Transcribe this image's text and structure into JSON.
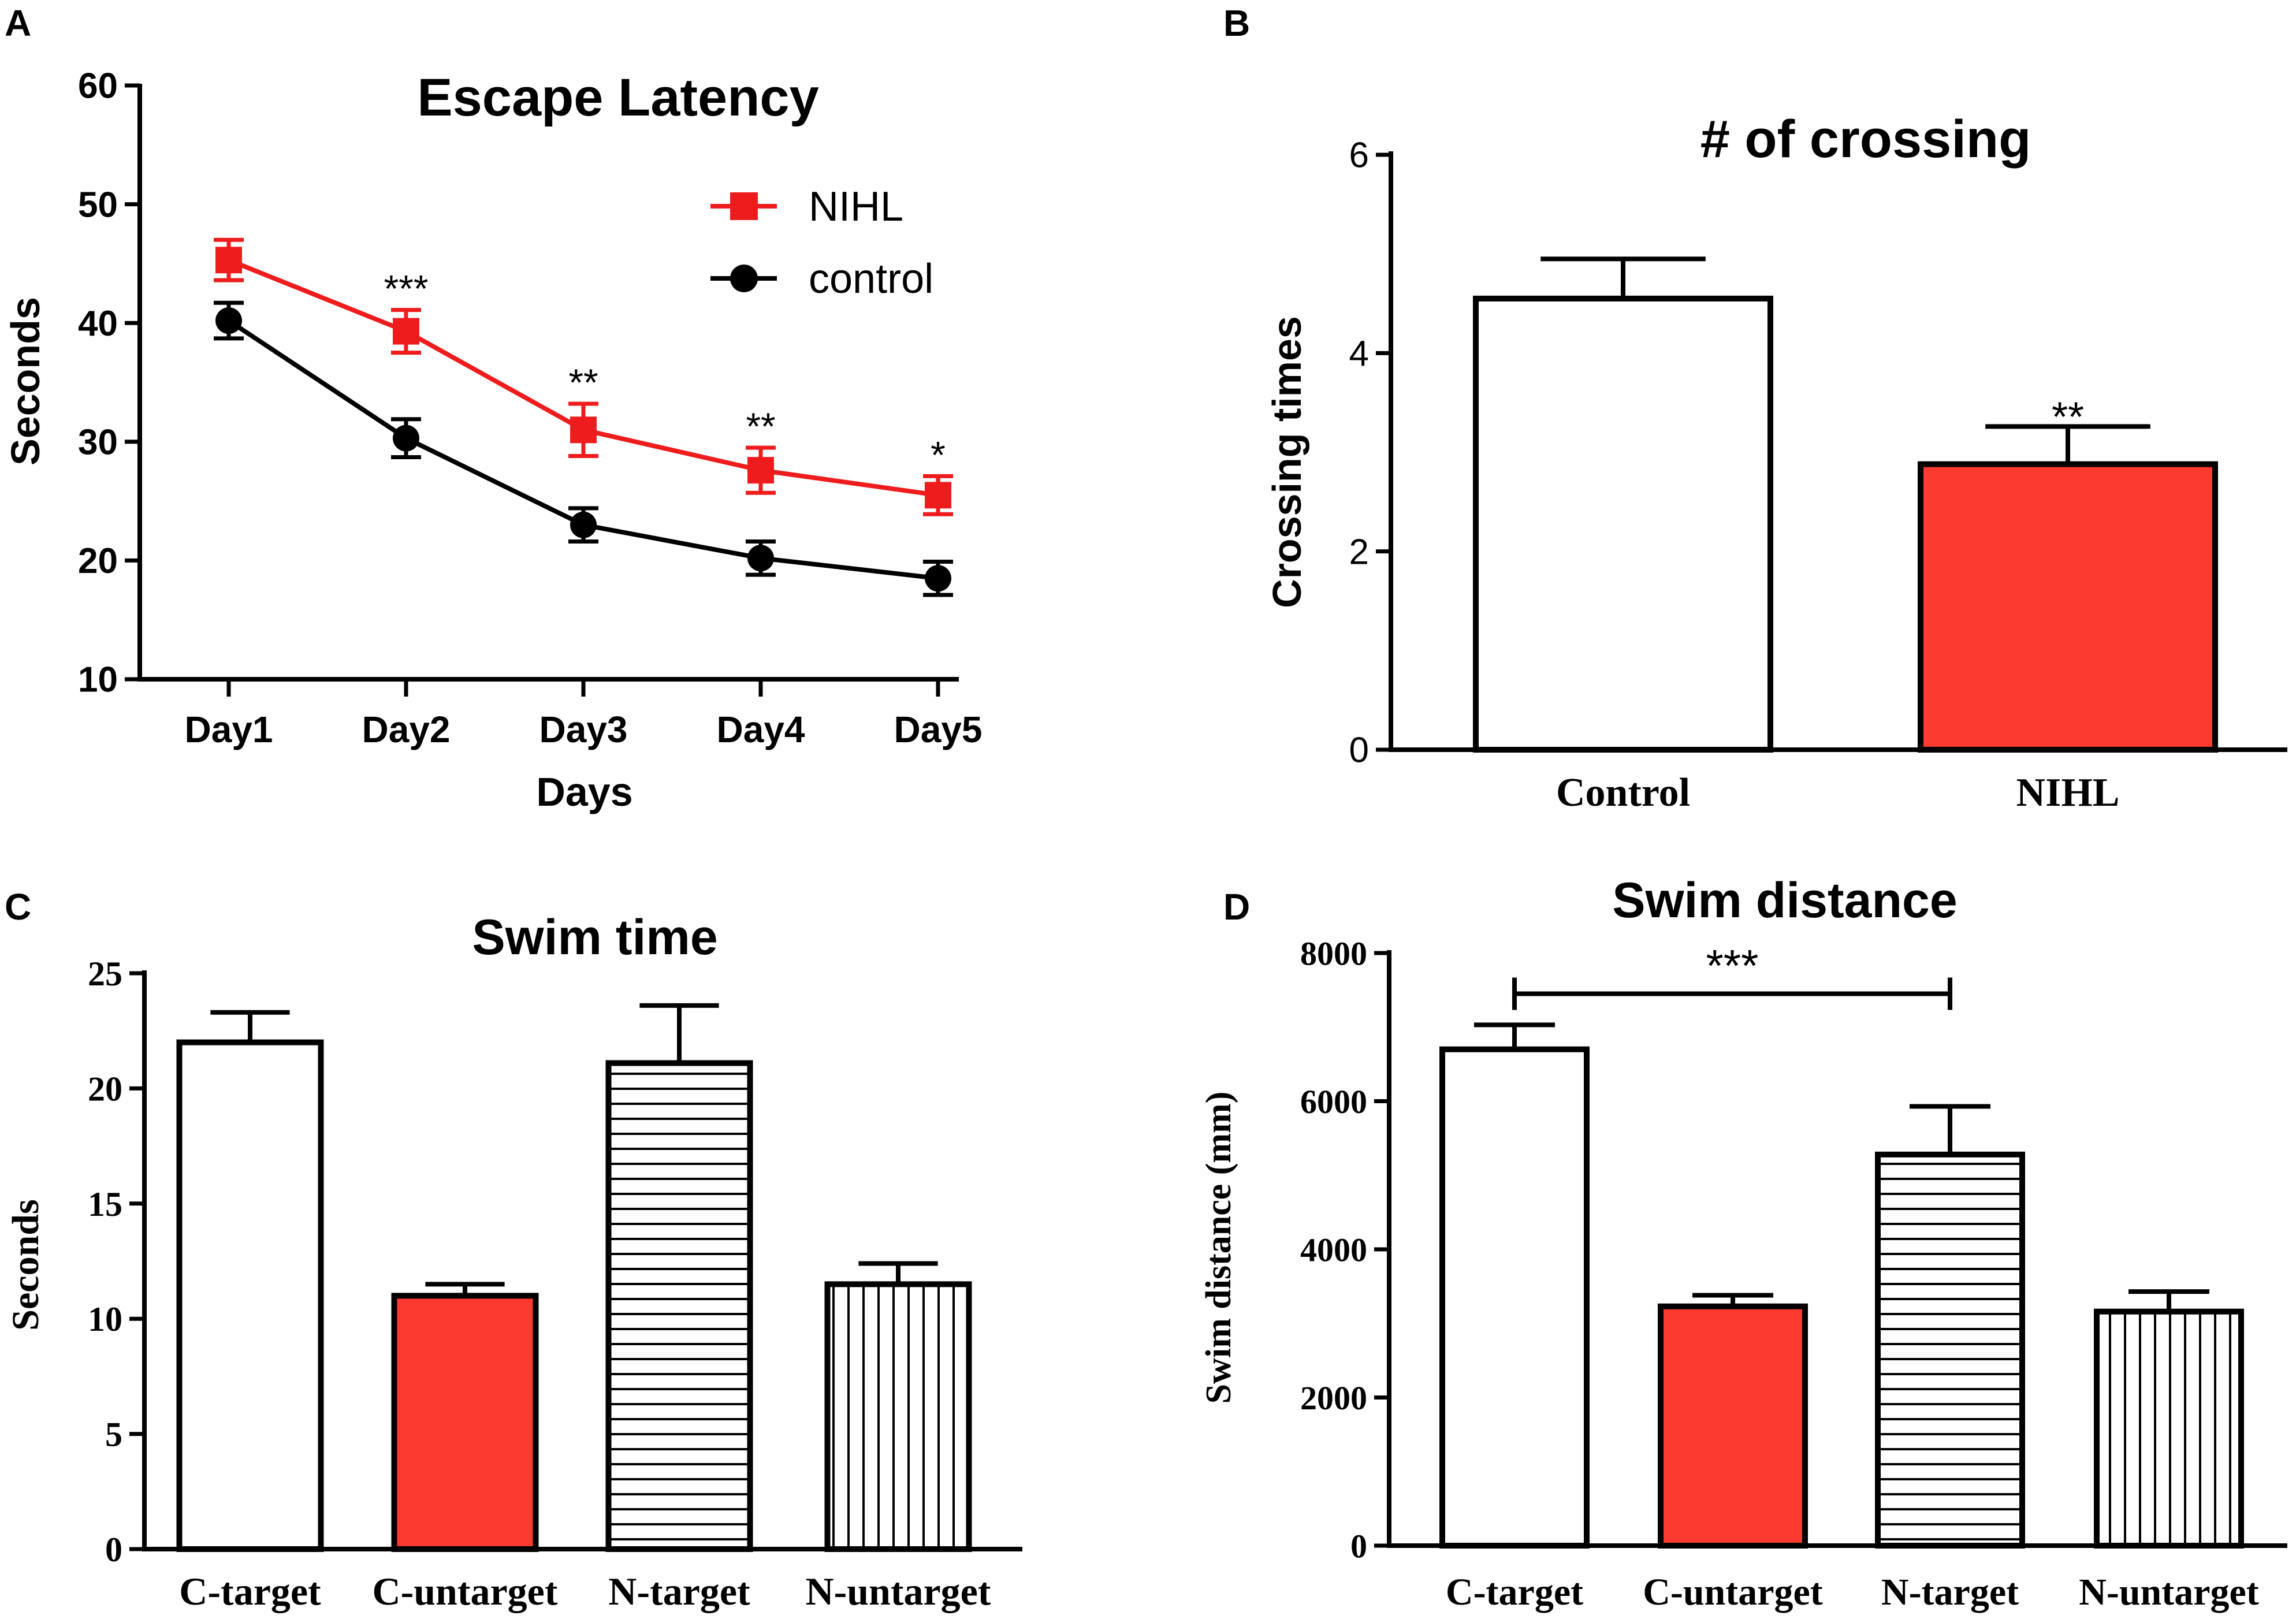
{
  "chart_data": [
    {
      "panel": "A",
      "type": "line",
      "title": "Escape Latency",
      "xlabel": "Days",
      "ylabel": "Seconds",
      "categories": [
        "Day1",
        "Day2",
        "Day3",
        "Day4",
        "Day5"
      ],
      "ylim": [
        10,
        60
      ],
      "yticks": [
        "10",
        "20",
        "30",
        "40",
        "50",
        "60"
      ],
      "series": [
        {
          "name": "NIHL",
          "color": "#ee1c1c",
          "marker": "square",
          "values": [
            45.3,
            39.3,
            31.0,
            27.6,
            25.5
          ],
          "errors": [
            1.7,
            1.8,
            2.2,
            1.9,
            1.6
          ]
        },
        {
          "name": "control",
          "color": "#000000",
          "marker": "circle",
          "values": [
            40.2,
            30.3,
            23.0,
            20.2,
            18.5
          ],
          "errors": [
            1.5,
            1.6,
            1.4,
            1.4,
            1.4
          ]
        }
      ],
      "annotations": [
        "",
        "***",
        "**",
        "**",
        "*"
      ]
    },
    {
      "panel": "B",
      "type": "bar",
      "title": "# of crossing",
      "xlabel": "",
      "ylabel": "Crossing times",
      "categories": [
        "Control",
        "NIHL"
      ],
      "values": [
        4.55,
        2.88
      ],
      "errors": [
        0.4,
        0.38
      ],
      "fills": [
        "#ffffff",
        "#fc3a30"
      ],
      "ylim": [
        0,
        6
      ],
      "yticks": [
        "0",
        "2",
        "4",
        "6"
      ],
      "annotations": [
        "",
        "**"
      ]
    },
    {
      "panel": "C",
      "type": "bar",
      "title": "Swim time",
      "xlabel": "",
      "ylabel": "Seconds",
      "categories": [
        "C-target",
        "C-untarget",
        "N-target",
        "N-untarget"
      ],
      "values": [
        22.0,
        11.0,
        21.1,
        11.5
      ],
      "errors": [
        1.3,
        0.5,
        2.5,
        0.9
      ],
      "fills": [
        "white",
        "red",
        "horizontal",
        "vertical"
      ],
      "ylim": [
        0,
        25
      ],
      "yticks": [
        "0",
        "5",
        "10",
        "15",
        "20",
        "25"
      ]
    },
    {
      "panel": "D",
      "type": "bar",
      "title": "Swim distance",
      "xlabel": "",
      "ylabel": "Swim distance (mm)",
      "categories": [
        "C-target",
        "C-untarget",
        "N-target",
        "N-untarget"
      ],
      "values": [
        6700,
        3230,
        5280,
        3160
      ],
      "errors": [
        330,
        150,
        650,
        270
      ],
      "fills": [
        "white",
        "red",
        "horizontal",
        "vertical"
      ],
      "ylim": [
        0,
        8000
      ],
      "yticks": [
        "0",
        "2000",
        "4000",
        "6000",
        "8000"
      ],
      "bracket": {
        "from": "C-target",
        "to": "N-target",
        "value": 7450,
        "label": "***"
      }
    }
  ]
}
